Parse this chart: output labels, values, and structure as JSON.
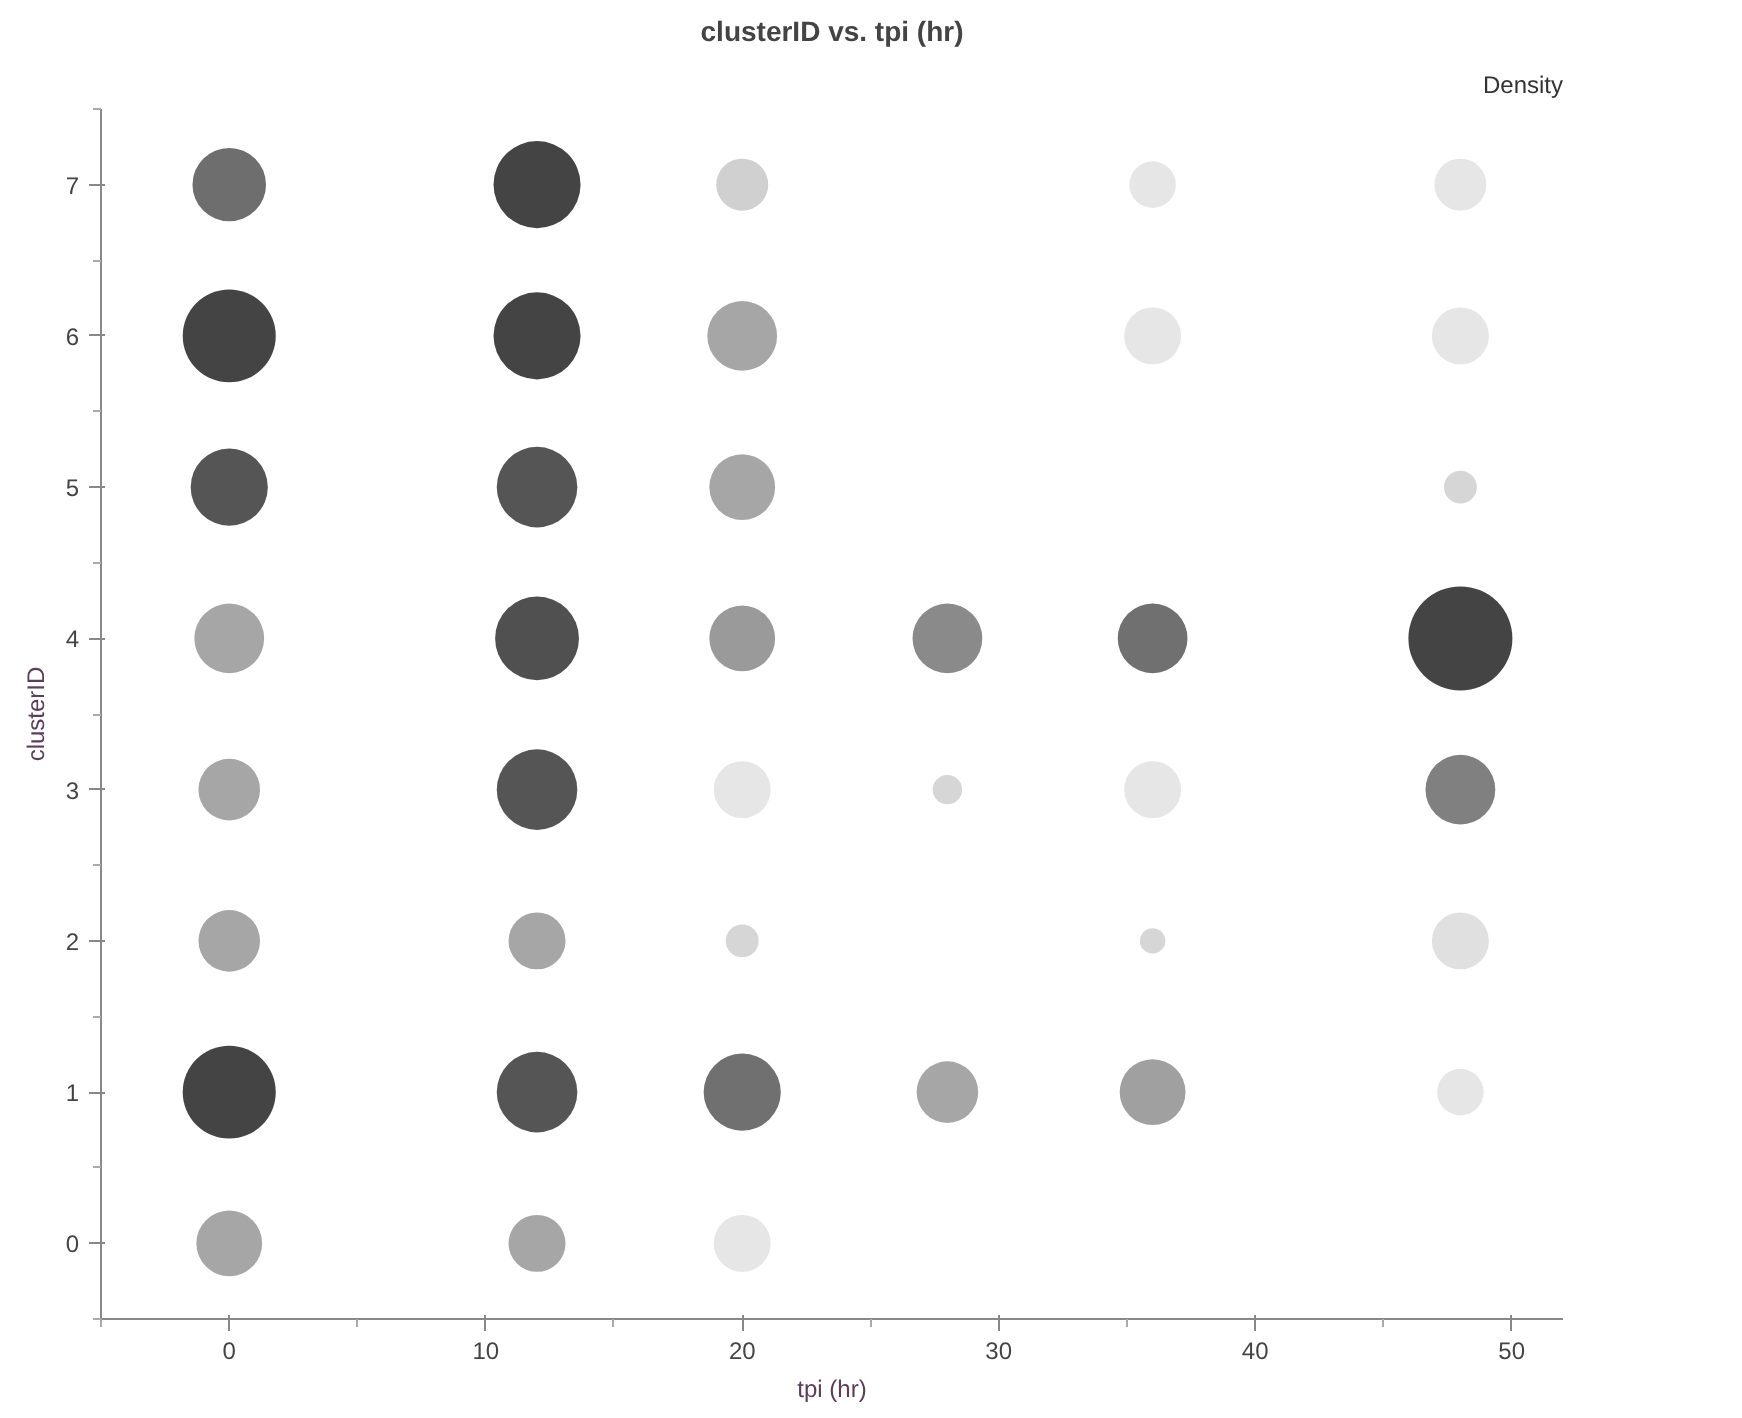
{
  "chart_data": {
    "type": "bubble",
    "title": "clusterID vs. tpi (hr)",
    "xlabel": "tpi (hr)",
    "ylabel": "clusterID",
    "legend_title": "Density",
    "x": [
      0,
      12,
      20,
      36,
      48,
      0,
      12,
      20,
      36,
      48,
      0,
      12,
      20,
      48,
      0,
      12,
      20,
      28,
      36,
      48,
      0,
      12,
      20,
      28,
      36,
      48,
      0,
      12,
      20,
      36,
      48,
      0,
      12,
      20,
      28,
      36,
      48,
      0,
      12,
      20
    ],
    "values": [
      7,
      7,
      7,
      7,
      7,
      6,
      6,
      6,
      6,
      6,
      5,
      5,
      5,
      5,
      4,
      4,
      4,
      4,
      4,
      4,
      3,
      3,
      3,
      3,
      3,
      3,
      2,
      2,
      2,
      2,
      2,
      1,
      1,
      1,
      1,
      1,
      1,
      0,
      0,
      0
    ],
    "sizes": [
      0.5,
      0.7,
      0.25,
      0.2,
      0.25,
      0.8,
      0.7,
      0.45,
      0.3,
      0.3,
      0.55,
      0.6,
      0.4,
      0.1,
      0.45,
      0.65,
      0.4,
      0.45,
      0.45,
      1.0,
      0.35,
      0.6,
      0.3,
      0.08,
      0.3,
      0.45,
      0.35,
      0.3,
      0.1,
      0.06,
      0.3,
      0.8,
      0.6,
      0.55,
      0.35,
      0.4,
      0.2,
      0.4,
      0.3,
      0.3
    ],
    "colors": [
      "#6e6e6e",
      "#444444",
      "#d0d0d0",
      "#e6e6e6",
      "#e6e6e6",
      "#444444",
      "#444444",
      "#a6a6a6",
      "#e6e6e6",
      "#e6e6e6",
      "#555555",
      "#555555",
      "#a6a6a6",
      "#d6d6d6",
      "#a6a6a6",
      "#505050",
      "#9a9a9a",
      "#8a8a8a",
      "#707070",
      "#444444",
      "#a6a6a6",
      "#555555",
      "#e6e6e6",
      "#d6d6d6",
      "#e6e6e6",
      "#808080",
      "#a6a6a6",
      "#a6a6a6",
      "#d6d6d6",
      "#d6d6d6",
      "#e0e0e0",
      "#444444",
      "#555555",
      "#707070",
      "#a6a6a6",
      "#a0a0a0",
      "#e6e6e6",
      "#a6a6a6",
      "#a6a6a6",
      "#e6e6e6"
    ],
    "xlim": [
      -5,
      52
    ],
    "xticks": [
      0,
      10,
      20,
      30,
      40,
      50
    ],
    "ylim": [
      -0.5,
      7.5
    ],
    "yticks": [
      0,
      1,
      2,
      3,
      4,
      5,
      6,
      7
    ]
  }
}
